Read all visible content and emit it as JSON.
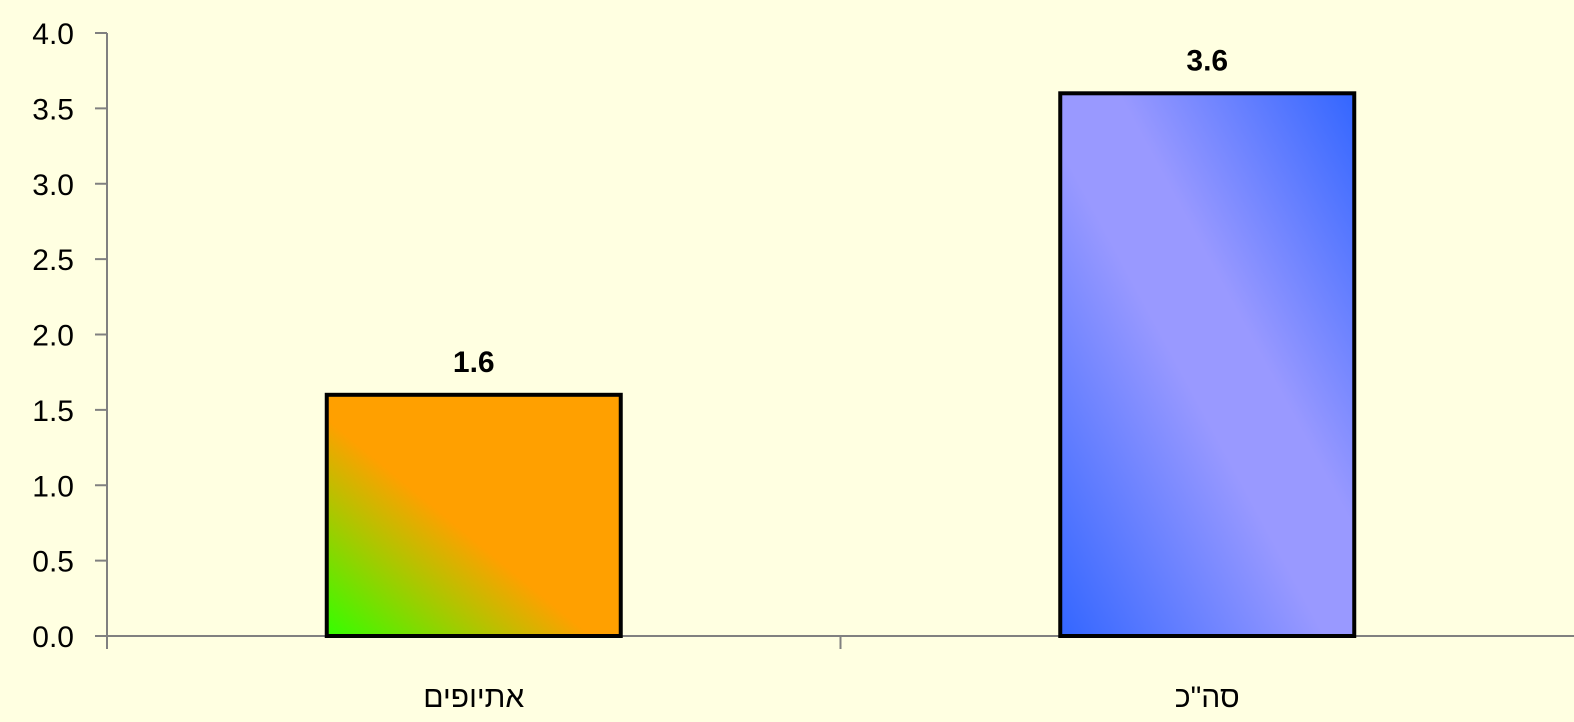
{
  "chart_data": {
    "type": "bar",
    "categories": [
      "אתיופים",
      "סה\"כ"
    ],
    "values": [
      1.6,
      3.6
    ],
    "data_labels": [
      "1.6",
      "3.6"
    ],
    "ylim": [
      0,
      4.0
    ],
    "yticks": [
      "0.0",
      "0.5",
      "1.0",
      "1.5",
      "2.0",
      "2.5",
      "3.0",
      "3.5",
      "4.0"
    ],
    "title": "",
    "xlabel": "",
    "ylabel": "",
    "grid": false,
    "legend": "none"
  },
  "colors": {
    "background": "#FFFFE1",
    "axis": "#808080",
    "bar_outline": "#000000",
    "bar1_gradient": [
      "#33FF00",
      "#FFA000",
      "#FFA000"
    ],
    "bar2_gradient": [
      "#3366FF",
      "#9999FF",
      "#9999FF",
      "#3366FF"
    ]
  }
}
